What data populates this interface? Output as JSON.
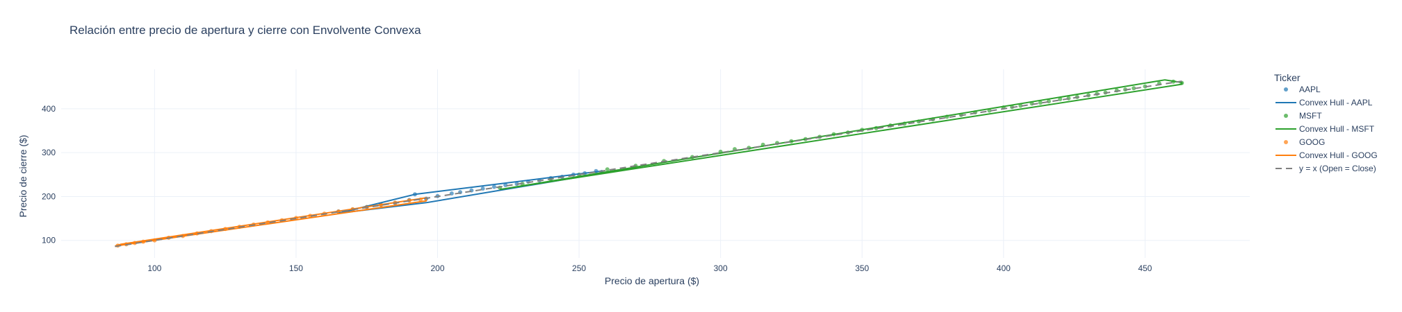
{
  "chart_data": {
    "type": "scatter",
    "title": "Relación entre precio de apertura y cierre con Envolvente Convexa",
    "xlabel": "Precio de apertura ($)",
    "ylabel": "Precio de cierre ($)",
    "xlim": [
      67,
      487
    ],
    "ylim": [
      60,
      490
    ],
    "x_ticks": [
      100,
      150,
      200,
      250,
      300,
      350,
      400,
      450
    ],
    "y_ticks": [
      100,
      200,
      300,
      400
    ],
    "grid": true,
    "legend": {
      "title": "Ticker",
      "placement": "right",
      "entries": [
        {
          "label": "AAPL",
          "kind": "marker",
          "color": "#1f77b4"
        },
        {
          "label": "Convex Hull - AAPL",
          "kind": "line",
          "color": "#1f77b4"
        },
        {
          "label": "MSFT",
          "kind": "marker",
          "color": "#2ca02c"
        },
        {
          "label": "Convex Hull - MSFT",
          "kind": "line",
          "color": "#2ca02c"
        },
        {
          "label": "GOOG",
          "kind": "marker",
          "color": "#ff7f0e"
        },
        {
          "label": "Convex Hull - GOOG",
          "kind": "line",
          "color": "#ff7f0e"
        },
        {
          "label": "y = x (Open = Close)",
          "kind": "dash",
          "color": "#7f7f7f"
        }
      ]
    },
    "series": [
      {
        "name": "AAPL",
        "color": "#1f77b4",
        "points": [
          [
            165,
            166
          ],
          [
            170,
            170
          ],
          [
            175,
            176
          ],
          [
            180,
            181
          ],
          [
            185,
            185
          ],
          [
            190,
            192
          ],
          [
            192,
            205
          ],
          [
            196,
            195
          ],
          [
            200,
            201
          ],
          [
            205,
            207
          ],
          [
            208,
            210
          ],
          [
            212,
            214
          ],
          [
            216,
            218
          ],
          [
            220,
            222
          ],
          [
            224,
            226
          ],
          [
            228,
            229
          ],
          [
            232,
            234
          ],
          [
            236,
            237
          ],
          [
            240,
            242
          ],
          [
            244,
            245
          ],
          [
            248,
            250
          ],
          [
            252,
            253
          ],
          [
            256,
            258
          ],
          [
            258,
            256
          ]
        ],
        "hull": [
          [
            165,
            162
          ],
          [
            192,
            205
          ],
          [
            258,
            258
          ],
          [
            258,
            253
          ],
          [
            196,
            186
          ],
          [
            165,
            162
          ]
        ]
      },
      {
        "name": "MSFT",
        "color": "#2ca02c",
        "points": [
          [
            222,
            220
          ],
          [
            230,
            229
          ],
          [
            240,
            240
          ],
          [
            250,
            250
          ],
          [
            260,
            262
          ],
          [
            270,
            270
          ],
          [
            280,
            281
          ],
          [
            290,
            290
          ],
          [
            300,
            302
          ],
          [
            305,
            308
          ],
          [
            310,
            311
          ],
          [
            315,
            318
          ],
          [
            320,
            322
          ],
          [
            325,
            326
          ],
          [
            330,
            331
          ],
          [
            335,
            336
          ],
          [
            340,
            342
          ],
          [
            345,
            346
          ],
          [
            350,
            352
          ],
          [
            355,
            356
          ],
          [
            360,
            362
          ],
          [
            365,
            366
          ],
          [
            370,
            371
          ],
          [
            375,
            376
          ],
          [
            380,
            382
          ],
          [
            385,
            386
          ],
          [
            390,
            392
          ],
          [
            395,
            396
          ],
          [
            400,
            403
          ],
          [
            403,
            404
          ],
          [
            406,
            407
          ],
          [
            410,
            412
          ],
          [
            413,
            414
          ],
          [
            416,
            417
          ],
          [
            420,
            422
          ],
          [
            423,
            424
          ],
          [
            426,
            427
          ],
          [
            430,
            431
          ],
          [
            433,
            434
          ],
          [
            436,
            437
          ],
          [
            440,
            442
          ],
          [
            443,
            444
          ],
          [
            446,
            447
          ],
          [
            450,
            451
          ],
          [
            455,
            458
          ],
          [
            460,
            462
          ],
          [
            463,
            459
          ]
        ],
        "hull": [
          [
            222,
            216
          ],
          [
            457,
            466
          ],
          [
            463,
            460
          ],
          [
            463,
            456
          ],
          [
            222,
            216
          ]
        ]
      },
      {
        "name": "GOOG",
        "color": "#ff7f0e",
        "points": [
          [
            87,
            88
          ],
          [
            90,
            91
          ],
          [
            93,
            94
          ],
          [
            96,
            97
          ],
          [
            100,
            100
          ],
          [
            105,
            106
          ],
          [
            110,
            110
          ],
          [
            115,
            116
          ],
          [
            120,
            121
          ],
          [
            125,
            126
          ],
          [
            130,
            131
          ],
          [
            135,
            136
          ],
          [
            140,
            141
          ],
          [
            145,
            146
          ],
          [
            150,
            151
          ],
          [
            155,
            156
          ],
          [
            160,
            161
          ],
          [
            165,
            166
          ],
          [
            170,
            171
          ],
          [
            175,
            176
          ],
          [
            180,
            181
          ],
          [
            185,
            186
          ],
          [
            190,
            191
          ],
          [
            194,
            193
          ]
        ],
        "hull": [
          [
            86,
            87
          ],
          [
            88,
            91
          ],
          [
            196,
            197
          ],
          [
            196,
            190
          ],
          [
            86,
            87
          ]
        ]
      }
    ],
    "reference_line": {
      "name": "y = x (Open = Close)",
      "color": "#7f7f7f",
      "from": [
        86,
        86
      ],
      "to": [
        463,
        463
      ]
    }
  }
}
